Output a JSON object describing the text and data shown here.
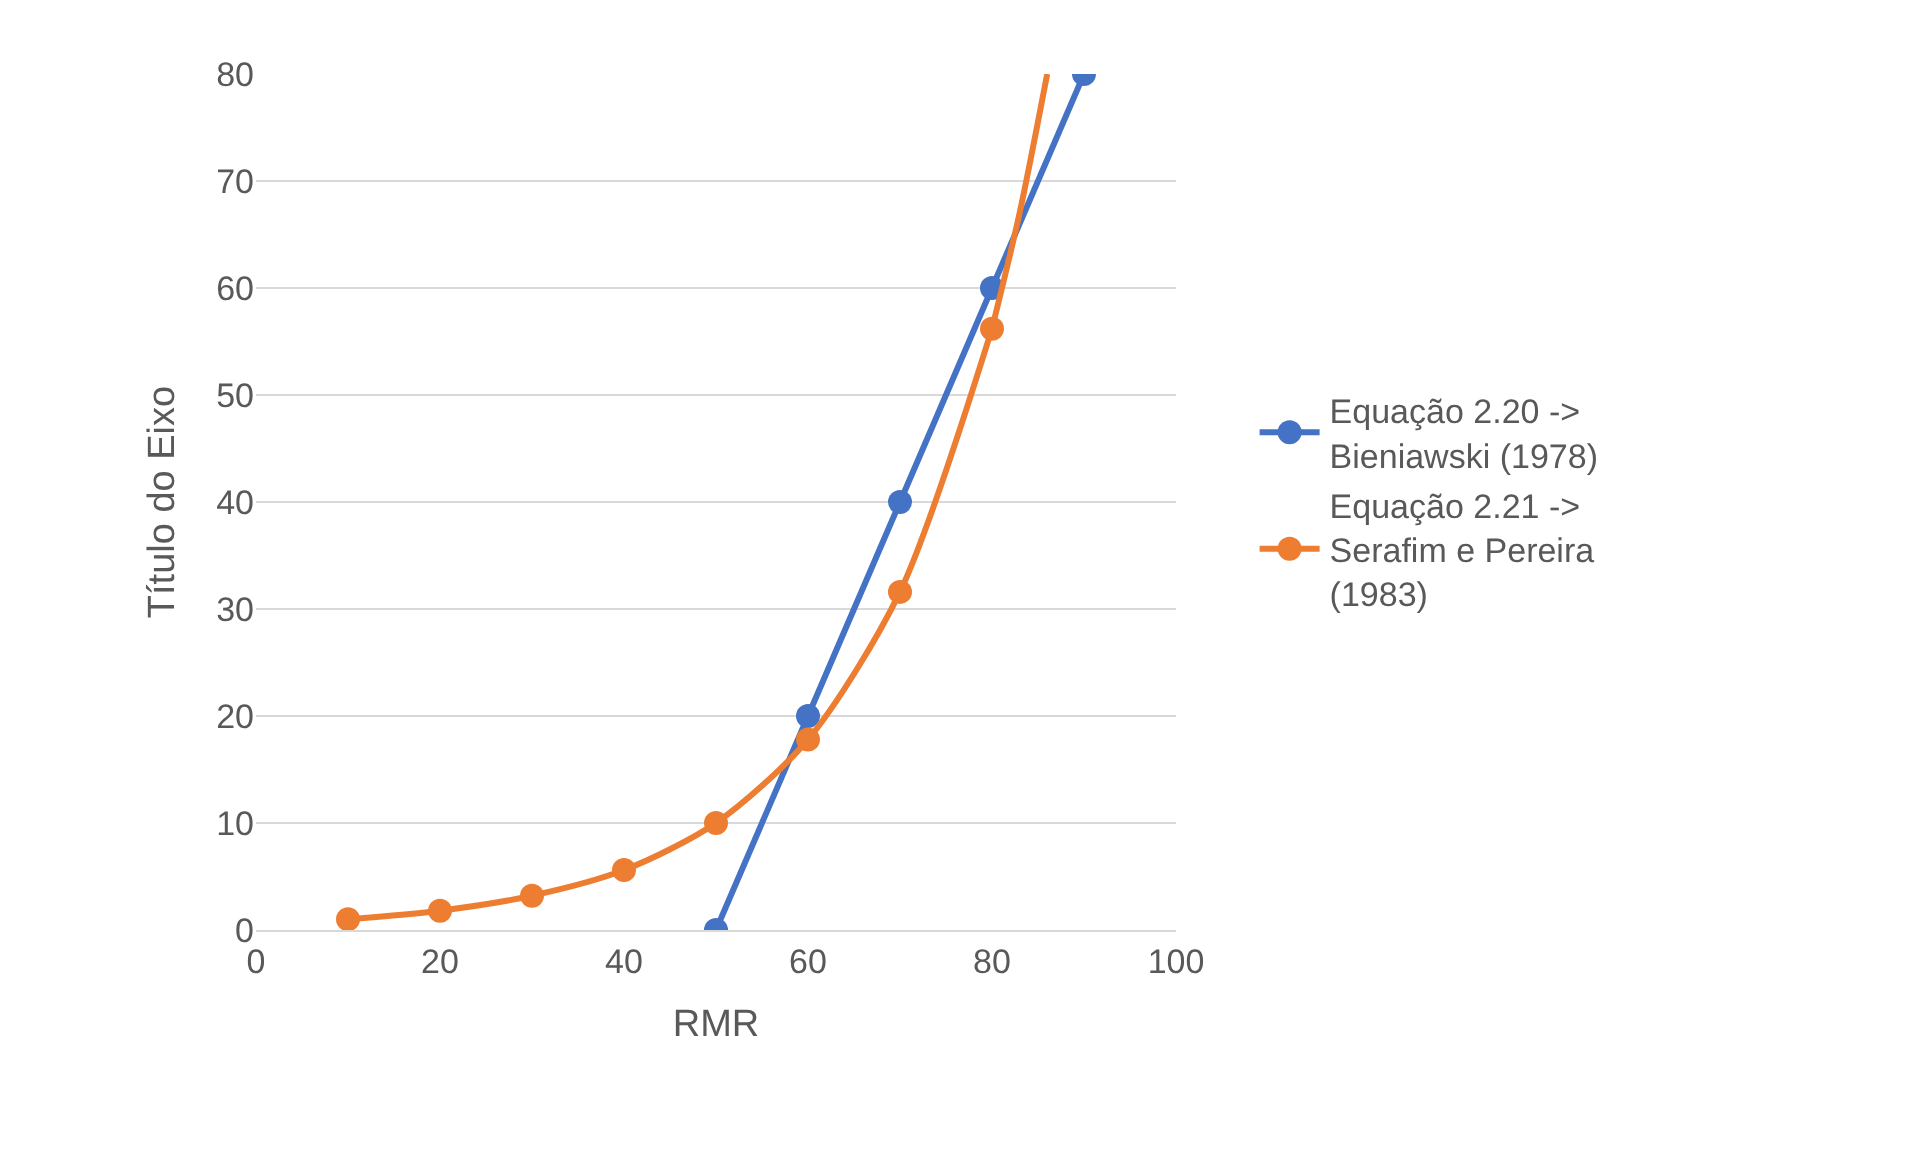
{
  "chart_data": {
    "type": "line",
    "xlabel": "RMR",
    "ylabel": "Título do Eixo",
    "xlim": [
      0,
      100
    ],
    "xticks": [
      0,
      20,
      40,
      60,
      80,
      100
    ],
    "ylim": [
      0,
      80
    ],
    "yticks": [
      0,
      10,
      20,
      30,
      40,
      50,
      60,
      70,
      80
    ],
    "grid": "y",
    "legend": "right",
    "marker": "circle",
    "line_style": "solid",
    "series": [
      {
        "name": "Equação 2.20 -> Bieniawski (1978)",
        "color": "#4472c4",
        "x": [
          50,
          60,
          70,
          80,
          90
        ],
        "values": [
          0,
          20,
          40,
          60,
          80
        ]
      },
      {
        "name": "Equação 2.21 -> Serafim e Pereira (1983)",
        "color": "#ed7d31",
        "x": [
          10,
          20,
          30,
          40,
          50,
          60,
          70,
          80
        ],
        "values": [
          1,
          1.8,
          3.2,
          5.6,
          10,
          17.8,
          31.6,
          56.2
        ]
      },
      {
        "color": "#ed7d31",
        "marker": "none",
        "x": [
          80,
          83,
          86
        ],
        "values": [
          56.2,
          67,
          80
        ]
      }
    ]
  }
}
